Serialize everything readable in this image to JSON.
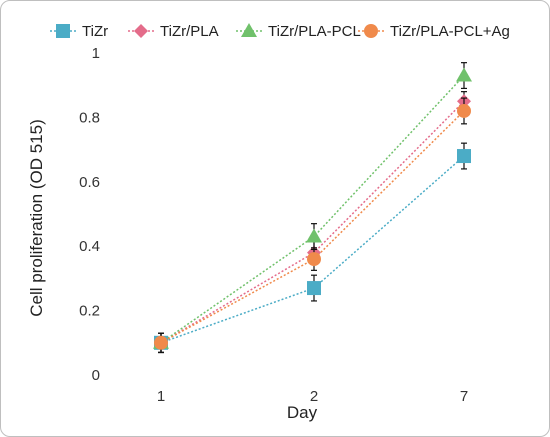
{
  "chart_data": {
    "type": "line",
    "categories": [
      "1",
      "2",
      "7"
    ],
    "xlabel": "Day",
    "ylabel": "Cell proliferation (OD  515)",
    "ylim": [
      0,
      1
    ],
    "yticks": [
      "0",
      "0.2",
      "0.4",
      "0.6",
      "0.8",
      "1"
    ],
    "grid": false,
    "legend_position": "top",
    "line_style": "dotted",
    "series": [
      {
        "name": "TiZr",
        "values": [
          0.1,
          0.27,
          0.68
        ],
        "errors": [
          0.03,
          0.04,
          0.04
        ],
        "color": "#4bacc6",
        "marker": "square"
      },
      {
        "name": "TiZr/PLA",
        "values": [
          0.1,
          0.38,
          0.85
        ],
        "errors": [
          0.03,
          0.035,
          0.03
        ],
        "color": "#e46c8a",
        "marker": "diamond"
      },
      {
        "name": "TiZr/PLA-PCL",
        "values": [
          0.1,
          0.43,
          0.93
        ],
        "errors": [
          0.03,
          0.04,
          0.04
        ],
        "color": "#70c16b",
        "marker": "triangle"
      },
      {
        "name": "TiZr/PLA-PCL+Ag",
        "values": [
          0.1,
          0.36,
          0.82
        ],
        "errors": [
          0.03,
          0.035,
          0.04
        ],
        "color": "#f08a4b",
        "marker": "circle"
      }
    ]
  }
}
